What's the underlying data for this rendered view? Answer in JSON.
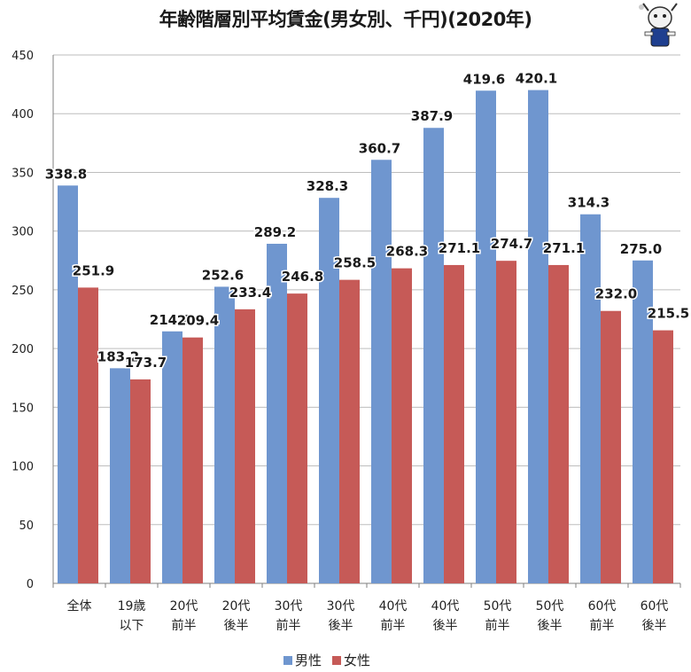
{
  "title": "年齢階層別平均賃金(男女別、千円)(2020年)",
  "colors": {
    "male": "#6f96cf",
    "female": "#c65a57",
    "grid": "#bdbdbd",
    "axis": "#7f7f7f"
  },
  "mascot_icon": "mascot-character-icon",
  "legend": {
    "male": "男性",
    "female": "女性"
  },
  "chart_data": {
    "type": "bar",
    "title": "年齢階層別平均賃金(男女別、千円)(2020年)",
    "categories": [
      [
        "全体"
      ],
      [
        "19歳",
        "以下"
      ],
      [
        "20代",
        "前半"
      ],
      [
        "20代",
        "後半"
      ],
      [
        "30代",
        "前半"
      ],
      [
        "30代",
        "後半"
      ],
      [
        "40代",
        "前半"
      ],
      [
        "40代",
        "後半"
      ],
      [
        "50代",
        "前半"
      ],
      [
        "50代",
        "後半"
      ],
      [
        "60代",
        "前半"
      ],
      [
        "60代",
        "後半"
      ]
    ],
    "series": [
      {
        "name": "男性",
        "values": [
          338.8,
          183.2,
          214.6,
          252.6,
          289.2,
          328.3,
          360.7,
          387.9,
          419.6,
          420.1,
          314.3,
          275.0
        ]
      },
      {
        "name": "女性",
        "values": [
          251.9,
          173.7,
          209.4,
          233.4,
          246.8,
          258.5,
          268.3,
          271.1,
          274.7,
          271.1,
          232.0,
          215.5
        ]
      }
    ],
    "ylim": [
      0,
      450
    ],
    "yticks": [
      0,
      50,
      100,
      150,
      200,
      250,
      300,
      350,
      400,
      450
    ],
    "grid": true,
    "legend_position": "bottom"
  }
}
